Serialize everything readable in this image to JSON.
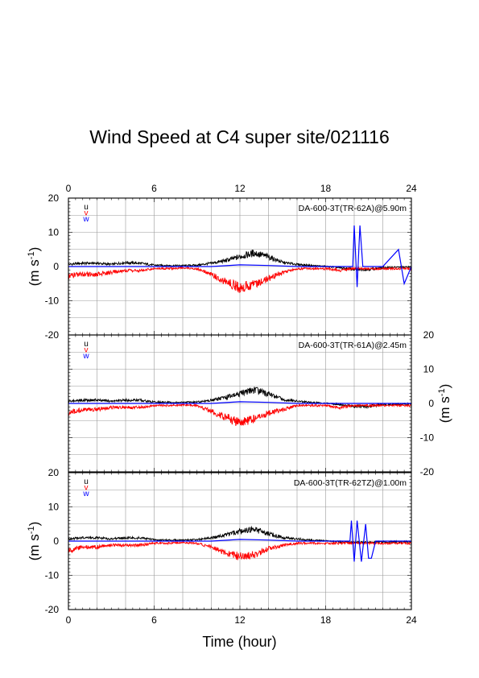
{
  "figure": {
    "title": "Wind Speed at C4 super site/021116",
    "xlabel": "Time (hour)"
  },
  "chart_data": [
    {
      "type": "line",
      "panel": "top",
      "station": "DA-600-3T(TR-62A)@5.90m",
      "xlabel": "Time (hour)",
      "ylabel": "(m s-1)",
      "ylabel_side": "left",
      "xlim": [
        0,
        24
      ],
      "ylim": [
        -20,
        20
      ],
      "xticks": [
        "0",
        "6",
        "12",
        "18",
        "24"
      ],
      "yticks": [
        "20",
        "10",
        "0",
        "-10",
        "-20"
      ],
      "grid": true,
      "legend": [
        "u",
        "v",
        "w"
      ],
      "series": [
        {
          "name": "u",
          "color": "#000000",
          "x": [
            0,
            1,
            2,
            3,
            4,
            5,
            6,
            7,
            8,
            9,
            10,
            11,
            12,
            13,
            14,
            15,
            16,
            17,
            18,
            19,
            20,
            21,
            22,
            23,
            24
          ],
          "y": [
            0.5,
            0.8,
            0.8,
            0.5,
            1.0,
            0.8,
            0.3,
            0.2,
            0.2,
            0.3,
            0.8,
            1.5,
            2.5,
            3.5,
            2.5,
            1.0,
            0.5,
            0.2,
            0.0,
            -0.5,
            -1.0,
            -1.0,
            -0.5,
            -0.3,
            -0.3
          ]
        },
        {
          "name": "v",
          "color": "#ff0000",
          "x": [
            0,
            1,
            2,
            3,
            4,
            5,
            6,
            7,
            8,
            9,
            10,
            11,
            12,
            13,
            14,
            15,
            16,
            17,
            18,
            19,
            20,
            21,
            22,
            23,
            24
          ],
          "y": [
            -2.5,
            -2.0,
            -2.0,
            -1.5,
            -1.0,
            -1.0,
            -0.5,
            -0.5,
            -0.3,
            -0.5,
            -2.0,
            -4.0,
            -5.5,
            -4.5,
            -3.0,
            -1.5,
            -0.5,
            -0.5,
            -0.5,
            -1.0,
            -0.5,
            -0.5,
            -0.5,
            -0.5,
            -0.5
          ]
        },
        {
          "name": "w",
          "color": "#0000ff",
          "x": [
            0,
            2,
            4,
            6,
            8,
            10,
            12,
            14,
            16,
            18,
            19.9,
            20.0,
            20.2,
            20.4,
            20.6,
            21,
            22,
            23.1,
            23.5,
            24
          ],
          "y": [
            0,
            0,
            0,
            0,
            0,
            0,
            0.5,
            0.3,
            0,
            0,
            0,
            12,
            -6,
            12,
            0,
            0,
            0,
            5,
            -5,
            0
          ]
        }
      ]
    },
    {
      "type": "line",
      "panel": "middle",
      "station": "DA-600-3T(TR-61A)@2.45m",
      "xlabel": "Time (hour)",
      "ylabel": "(m s-1)",
      "ylabel_side": "right",
      "xlim": [
        0,
        24
      ],
      "ylim": [
        -20,
        20
      ],
      "xticks": [
        "0",
        "6",
        "12",
        "18",
        "24"
      ],
      "yticks": [
        "20",
        "10",
        "0",
        "-10",
        "-20"
      ],
      "grid": true,
      "legend": [
        "u",
        "v",
        "w"
      ],
      "series": [
        {
          "name": "u",
          "color": "#000000",
          "x": [
            0,
            1,
            2,
            3,
            4,
            5,
            6,
            7,
            8,
            9,
            10,
            11,
            12,
            13,
            14,
            15,
            16,
            17,
            18,
            19,
            20,
            21,
            22,
            23,
            24
          ],
          "y": [
            0.5,
            0.8,
            0.8,
            0.5,
            0.8,
            0.8,
            0.3,
            0.2,
            0.2,
            0.3,
            0.8,
            1.5,
            2.5,
            3.5,
            2.5,
            1.0,
            0.5,
            0.2,
            0.0,
            -0.5,
            -1.0,
            -1.0,
            -0.5,
            -0.3,
            -0.3
          ]
        },
        {
          "name": "v",
          "color": "#ff0000",
          "x": [
            0,
            1,
            2,
            3,
            4,
            5,
            6,
            7,
            8,
            9,
            10,
            11,
            12,
            13,
            14,
            15,
            16,
            17,
            18,
            19,
            20,
            21,
            22,
            23,
            24
          ],
          "y": [
            -2.5,
            -1.5,
            -1.5,
            -1.0,
            -1.0,
            -1.0,
            -0.5,
            -0.5,
            -0.3,
            -0.5,
            -2.0,
            -3.5,
            -5.0,
            -4.0,
            -2.5,
            -1.5,
            -0.5,
            -0.5,
            -0.5,
            -1.0,
            -0.5,
            -0.5,
            -0.5,
            -0.5,
            -0.5
          ]
        },
        {
          "name": "w",
          "color": "#0000ff",
          "x": [
            0,
            2,
            4,
            6,
            8,
            10,
            12,
            14,
            16,
            18,
            20,
            22,
            24
          ],
          "y": [
            0,
            0,
            0,
            0,
            0,
            0,
            0.5,
            0.3,
            0,
            0,
            0,
            0,
            0
          ]
        }
      ]
    },
    {
      "type": "line",
      "panel": "bottom",
      "station": "DA-600-3T(TR-62TZ)@1.00m",
      "xlabel": "Time (hour)",
      "ylabel": "(m s-1)",
      "ylabel_side": "left",
      "xlim": [
        0,
        24
      ],
      "ylim": [
        -20,
        20
      ],
      "xticks": [
        "0",
        "6",
        "12",
        "18",
        "24"
      ],
      "yticks": [
        "20",
        "10",
        "0",
        "-10",
        "-20"
      ],
      "grid": true,
      "legend": [
        "u",
        "v",
        "w"
      ],
      "series": [
        {
          "name": "u",
          "color": "#000000",
          "x": [
            0,
            1,
            2,
            3,
            4,
            5,
            6,
            7,
            8,
            9,
            10,
            11,
            12,
            13,
            14,
            15,
            16,
            17,
            18,
            19,
            20,
            21,
            22,
            23,
            24
          ],
          "y": [
            0.5,
            0.8,
            0.8,
            0.5,
            0.8,
            0.8,
            0.3,
            0.2,
            0.2,
            0.3,
            0.8,
            1.5,
            2.5,
            3.0,
            2.0,
            0.8,
            0.5,
            0.2,
            0.0,
            -0.3,
            -0.5,
            -0.5,
            -0.3,
            -0.3,
            -0.3
          ]
        },
        {
          "name": "v",
          "color": "#ff0000",
          "x": [
            0,
            1,
            2,
            3,
            4,
            5,
            6,
            7,
            8,
            9,
            10,
            11,
            12,
            13,
            14,
            15,
            16,
            17,
            18,
            19,
            20,
            21,
            22,
            23,
            24
          ],
          "y": [
            -2.5,
            -1.5,
            -1.5,
            -1.0,
            -1.0,
            -1.0,
            -0.5,
            -0.5,
            -0.3,
            -0.5,
            -1.5,
            -3.0,
            -4.0,
            -3.5,
            -2.0,
            -1.0,
            -0.5,
            -0.5,
            -0.5,
            -0.5,
            -0.5,
            -0.5,
            -0.5,
            -0.5,
            -0.5
          ]
        },
        {
          "name": "w",
          "color": "#0000ff",
          "x": [
            0,
            2,
            4,
            6,
            8,
            10,
            12,
            14,
            16,
            18,
            19.7,
            19.8,
            20.0,
            20.2,
            20.5,
            20.8,
            21.0,
            21.2,
            21.5,
            22,
            24
          ],
          "y": [
            0,
            0,
            0,
            0,
            0,
            0,
            0.5,
            0.3,
            0,
            0,
            0,
            6,
            -6,
            6,
            -6,
            5,
            -5,
            -5,
            0,
            0,
            0
          ]
        }
      ]
    }
  ]
}
